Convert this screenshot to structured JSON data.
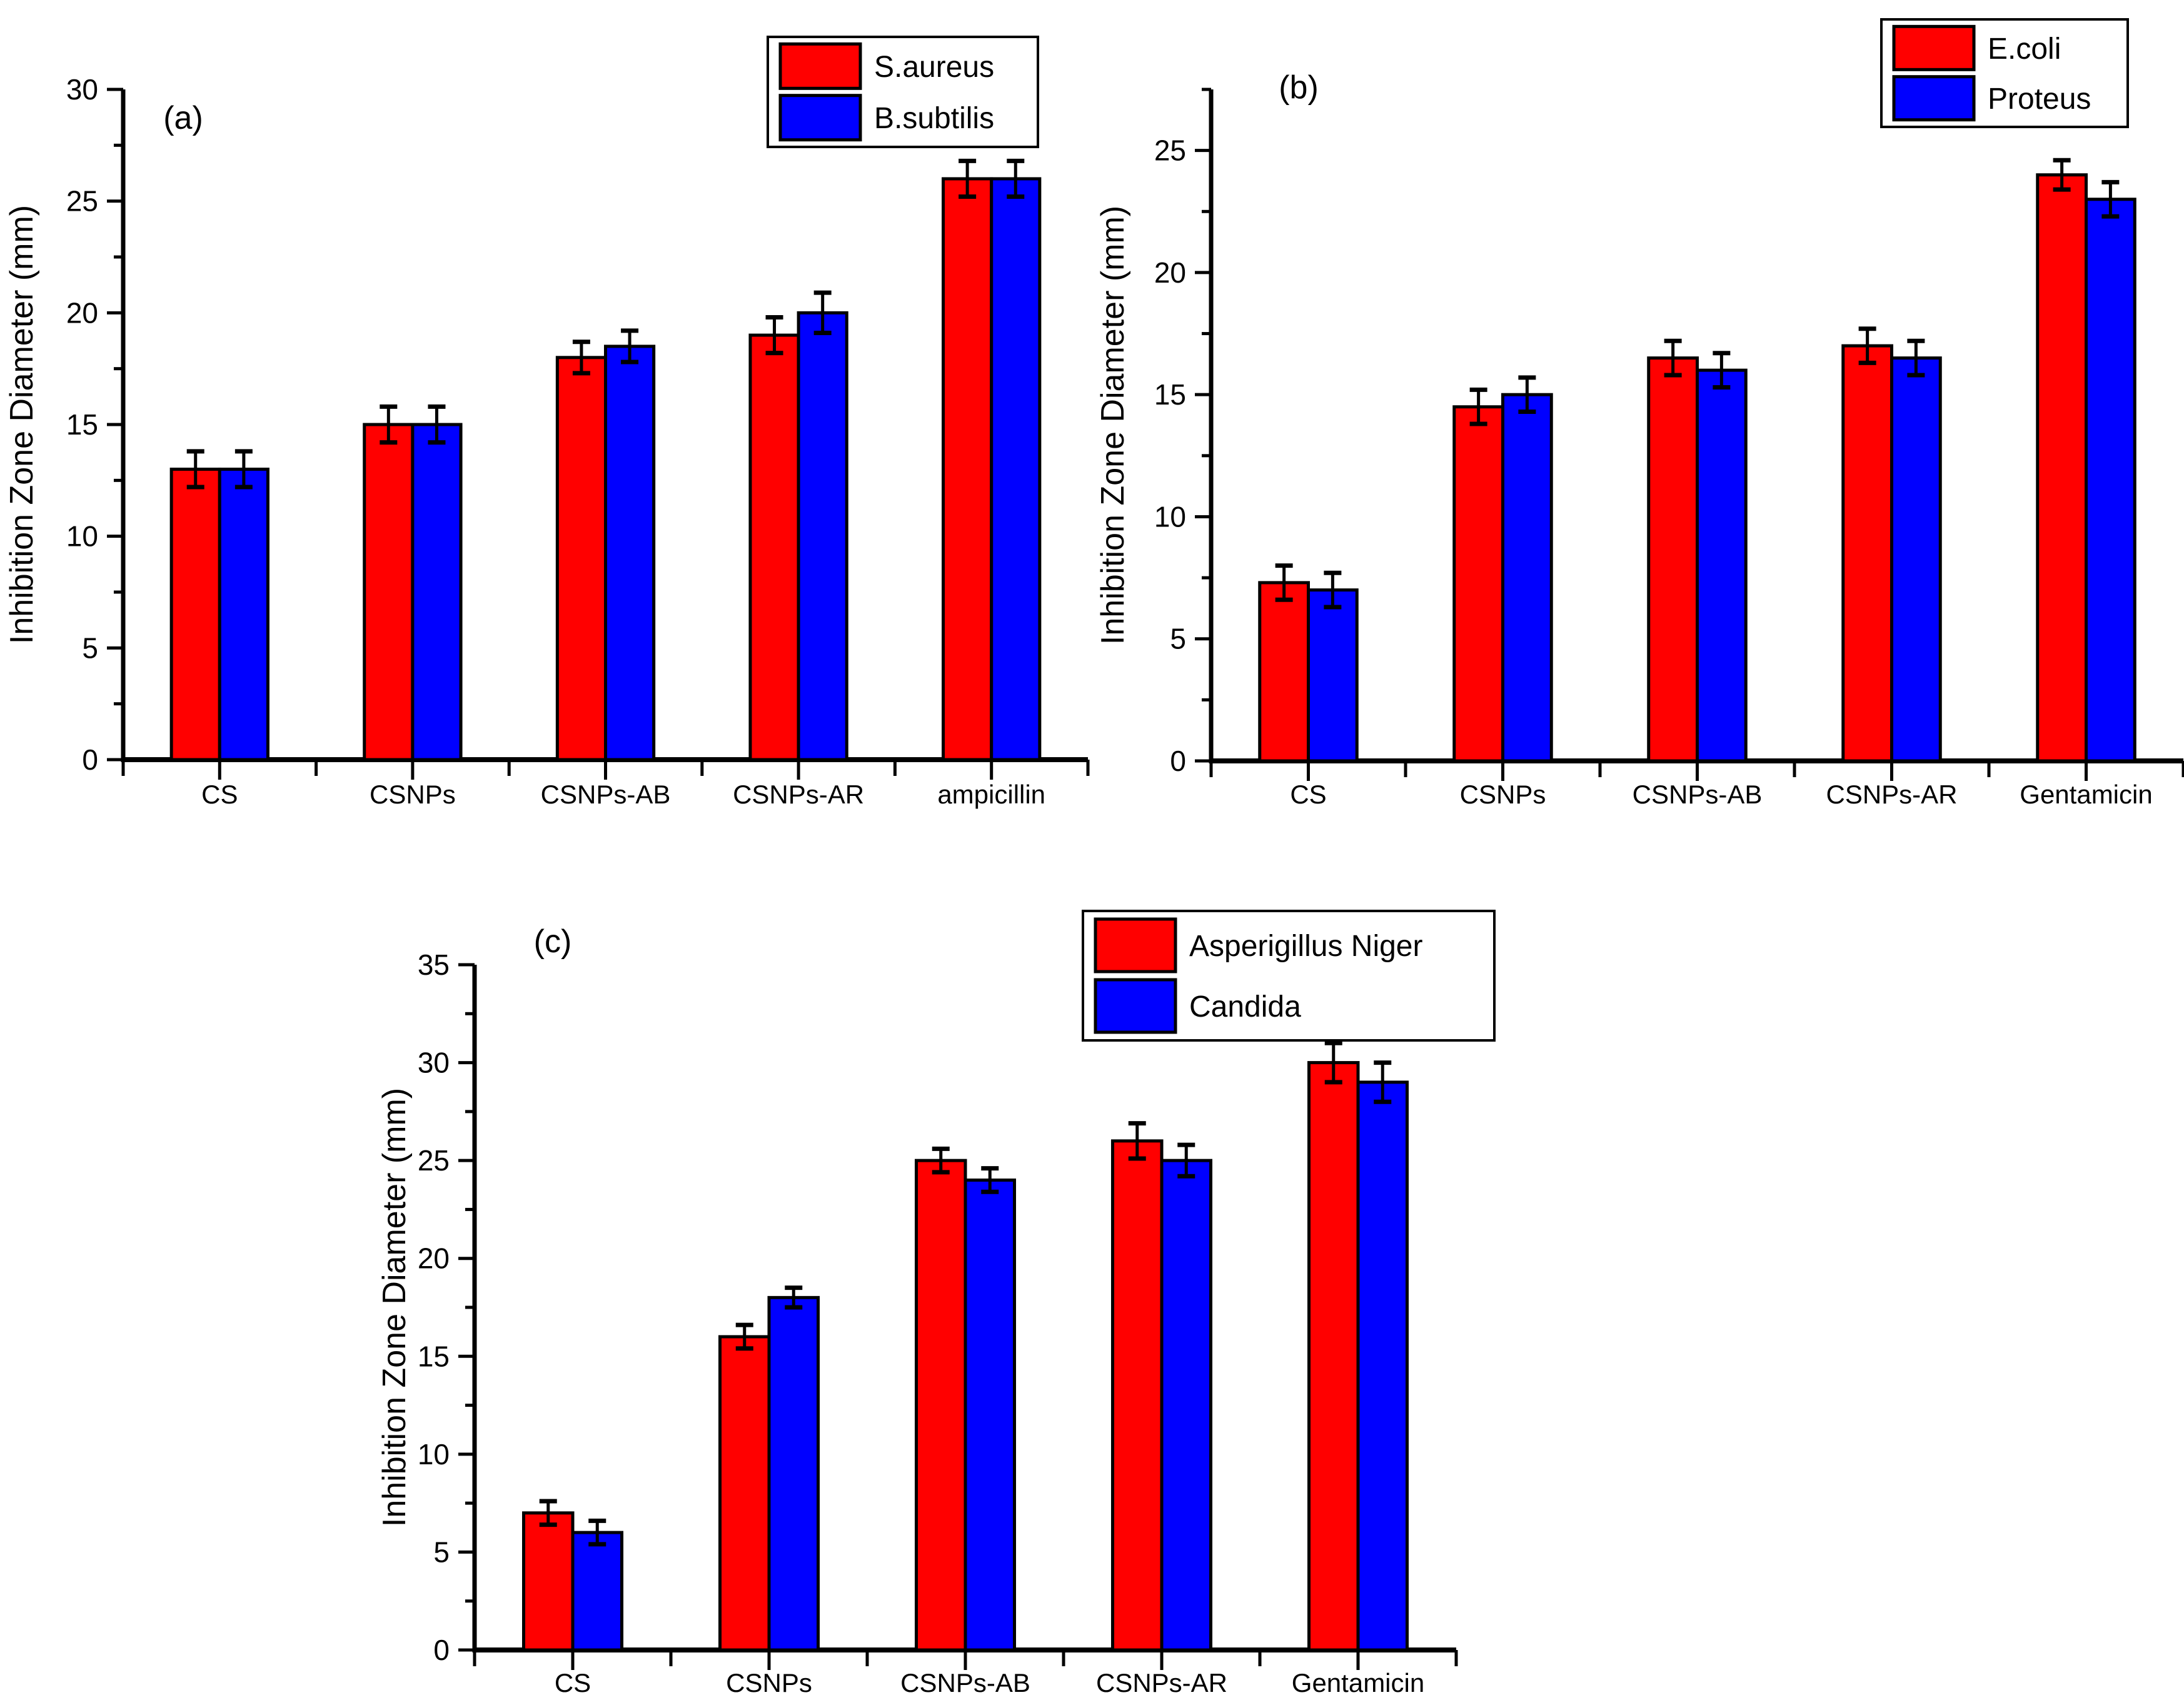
{
  "figure": {
    "background": "#ffffff",
    "axis_color": "#000000",
    "bar_outline_color": "#000000",
    "series_red": "#ff0000",
    "series_blue": "#0000ff"
  },
  "chart_data": [
    {
      "type": "bar",
      "panel_label": "(a)",
      "ylabel": "Inhibition Zone Diameter (mm)",
      "categories": [
        "CS",
        "CSNPs",
        "CSNPs-AB",
        "CSNPs-AR",
        "ampicillin"
      ],
      "series": [
        {
          "name": "S.aureus",
          "color": "#ff0000",
          "values": [
            13,
            15,
            18,
            19,
            26
          ],
          "errors": [
            0.8,
            0.8,
            0.7,
            0.8,
            0.8
          ]
        },
        {
          "name": "B.subtilis",
          "color": "#0000ff",
          "values": [
            13,
            15,
            18.5,
            20,
            26
          ],
          "errors": [
            0.8,
            0.8,
            0.7,
            0.9,
            0.8
          ]
        }
      ],
      "ylim": [
        0,
        30
      ],
      "ytick_step": 5,
      "ytick_max_label": 30,
      "yminor_step": 2.5,
      "grid": false,
      "legend_position": "top-right-of-panel"
    },
    {
      "type": "bar",
      "panel_label": "(b)",
      "ylabel": "Inhibition Zone Diameter (mm)",
      "categories": [
        "CS",
        "CSNPs",
        "CSNPs-AB",
        "CSNPs-AR",
        "Gentamicin"
      ],
      "series": [
        {
          "name": "E.coli",
          "color": "#ff0000",
          "values": [
            7.3,
            14.5,
            16.5,
            17,
            24
          ],
          "errors": [
            0.7,
            0.7,
            0.7,
            0.7,
            0.6
          ]
        },
        {
          "name": "Proteus",
          "color": "#0000ff",
          "values": [
            7,
            15,
            16,
            16.5,
            23
          ],
          "errors": [
            0.7,
            0.7,
            0.7,
            0.7,
            0.7
          ]
        }
      ],
      "ylim": [
        0,
        27.5
      ],
      "ytick_step": 5,
      "ytick_max_label": 25,
      "yminor_step": 2.5,
      "grid": false,
      "legend_position": "top-right-of-panel"
    },
    {
      "type": "bar",
      "panel_label": "(c)",
      "ylabel": "Inhibition Zone Diameter (mm)",
      "categories": [
        "CS",
        "CSNPs",
        "CSNPs-AB",
        "CSNPs-AR",
        "Gentamicin"
      ],
      "series": [
        {
          "name": "Asperigillus Niger",
          "color": "#ff0000",
          "values": [
            7,
            16,
            25,
            26,
            30
          ],
          "errors": [
            0.6,
            0.6,
            0.6,
            0.9,
            1.0
          ]
        },
        {
          "name": "Candida",
          "color": "#0000ff",
          "values": [
            6,
            18,
            24,
            25,
            29
          ],
          "errors": [
            0.6,
            0.5,
            0.6,
            0.8,
            1.0
          ]
        }
      ],
      "ylim": [
        0,
        35
      ],
      "ytick_step": 5,
      "ytick_max_label": 35,
      "yminor_step": 2.5,
      "grid": false,
      "legend_position": "top-right-of-panel"
    }
  ]
}
